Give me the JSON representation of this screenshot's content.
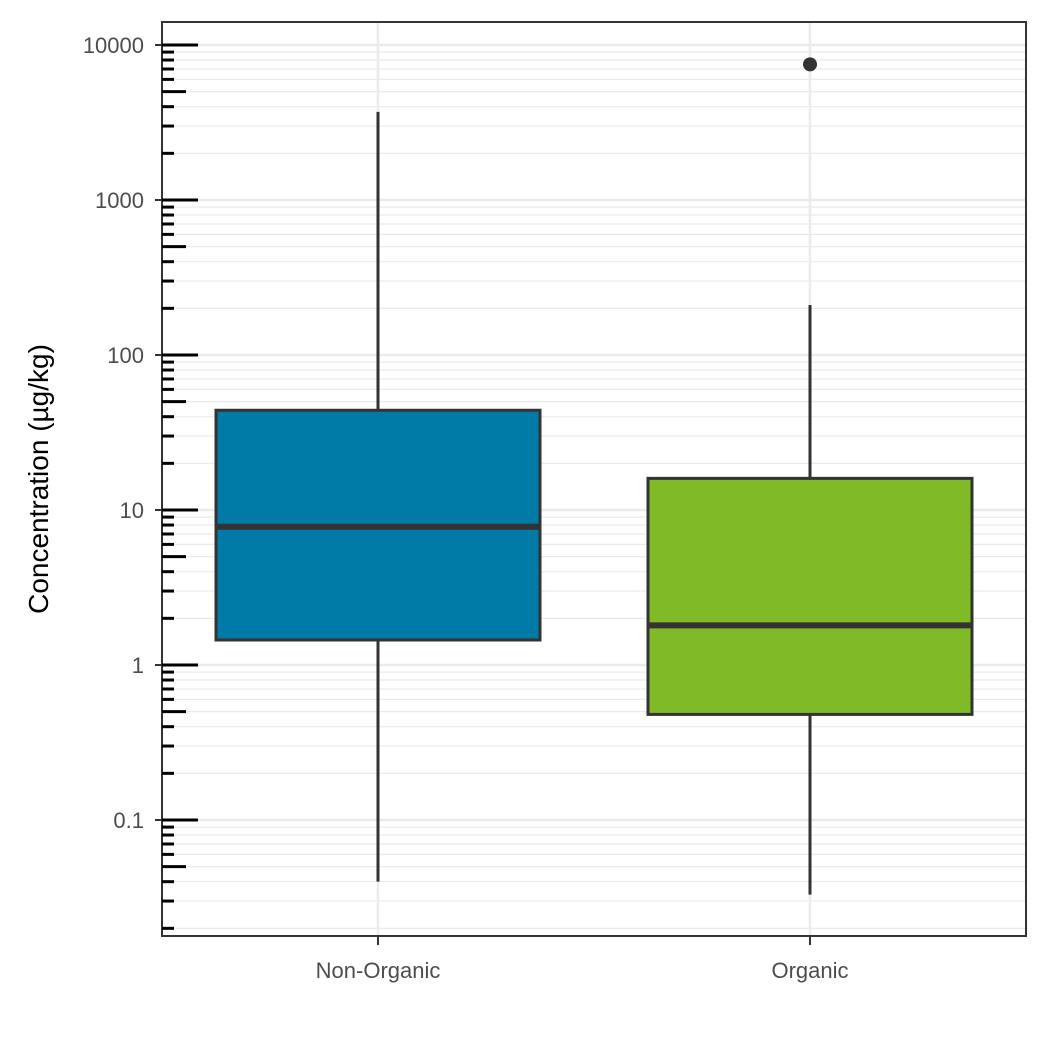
{
  "chart_data": {
    "type": "boxplot",
    "title": "",
    "xlabel": "",
    "ylabel": "Concentration (µg/kg)",
    "yscale": "log10",
    "ylim": [
      0.018,
      12000
    ],
    "y_ticks": [
      0.1,
      1,
      10,
      100,
      1000,
      10000
    ],
    "y_tick_labels": [
      "0.1",
      "1",
      "10",
      "100",
      "1000",
      "10000"
    ],
    "grid": true,
    "categories": [
      "Non-Organic",
      "Organic"
    ],
    "boxes": [
      {
        "category": "Non-Organic",
        "whisker_low": 0.04,
        "q1": 1.45,
        "median": 7.8,
        "q3": 44,
        "whisker_high": 3700,
        "outliers": [],
        "color": "#007BA7"
      },
      {
        "category": "Organic",
        "whisker_low": 0.033,
        "q1": 0.48,
        "median": 1.8,
        "q3": 16,
        "whisker_high": 210,
        "outliers": [
          7500
        ],
        "color": "#80BA27"
      }
    ]
  }
}
